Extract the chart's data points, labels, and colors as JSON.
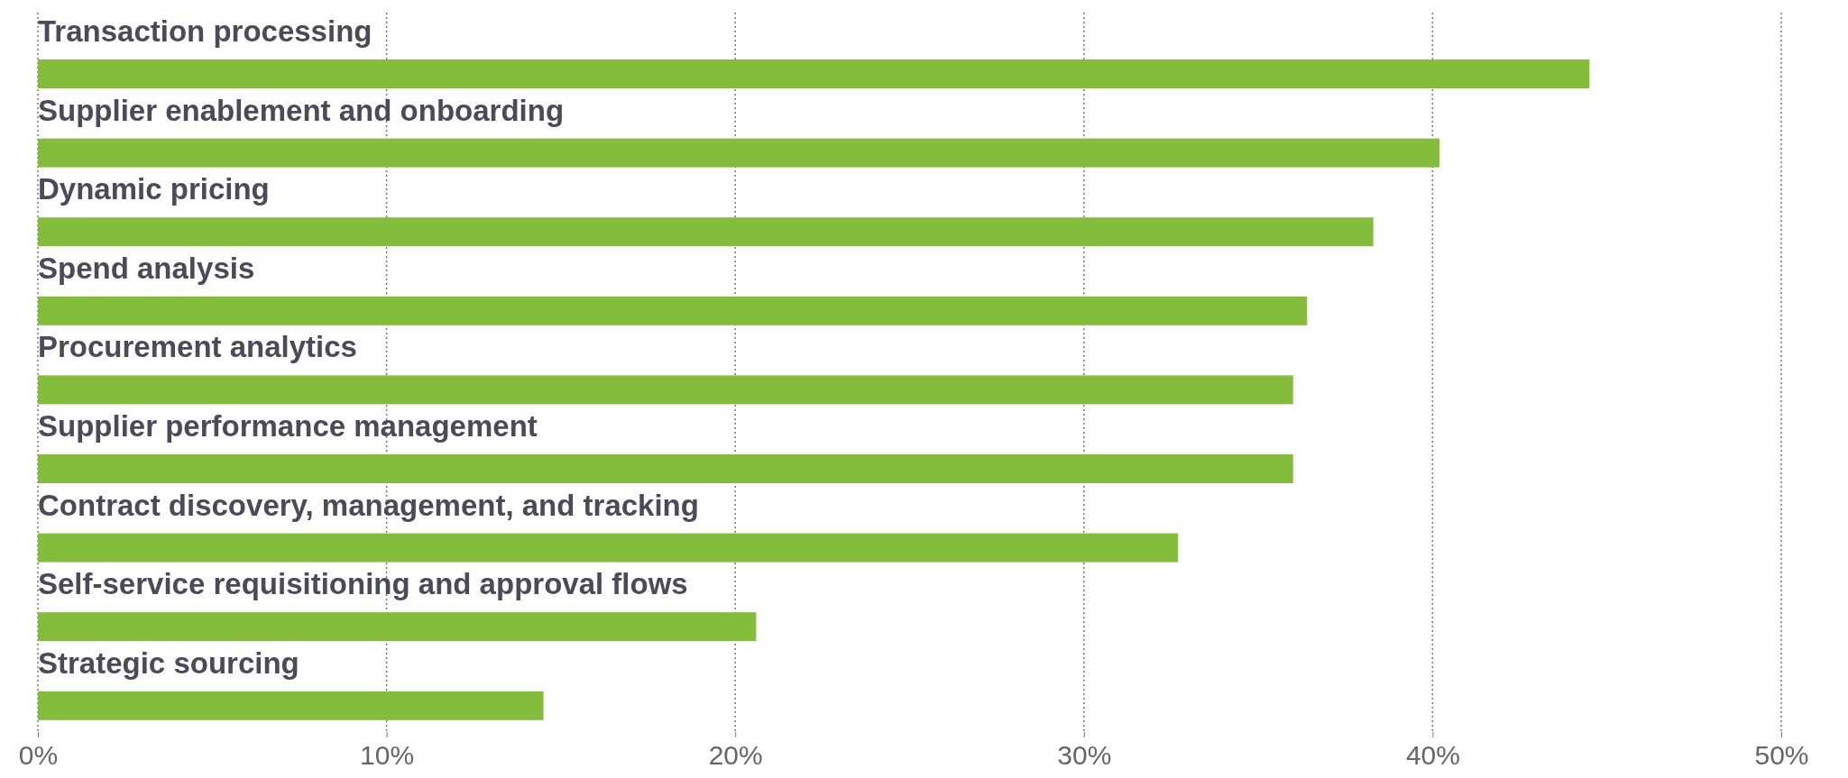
{
  "chart_data": {
    "type": "bar",
    "orientation": "horizontal",
    "categories": [
      "Transaction processing",
      "Supplier enablement and onboarding",
      "Dynamic pricing",
      "Spend analysis",
      "Procurement analytics",
      "Supplier performance management",
      "Contract discovery, management, and tracking",
      "Self-service requisitioning and approval flows",
      "Strategic sourcing"
    ],
    "values": [
      44.5,
      40.2,
      38.3,
      36.4,
      36.0,
      36.0,
      32.7,
      20.6,
      14.5
    ],
    "color": "#84bc3c",
    "xlim": [
      0,
      50
    ],
    "xticks": [
      {
        "value": 0,
        "label": "0%"
      },
      {
        "value": 10,
        "label": "10%"
      },
      {
        "value": 20,
        "label": "20%"
      },
      {
        "value": 30,
        "label": "30%"
      },
      {
        "value": 40,
        "label": "40%"
      },
      {
        "value": 50,
        "label": "50%"
      }
    ],
    "grid": "x"
  }
}
